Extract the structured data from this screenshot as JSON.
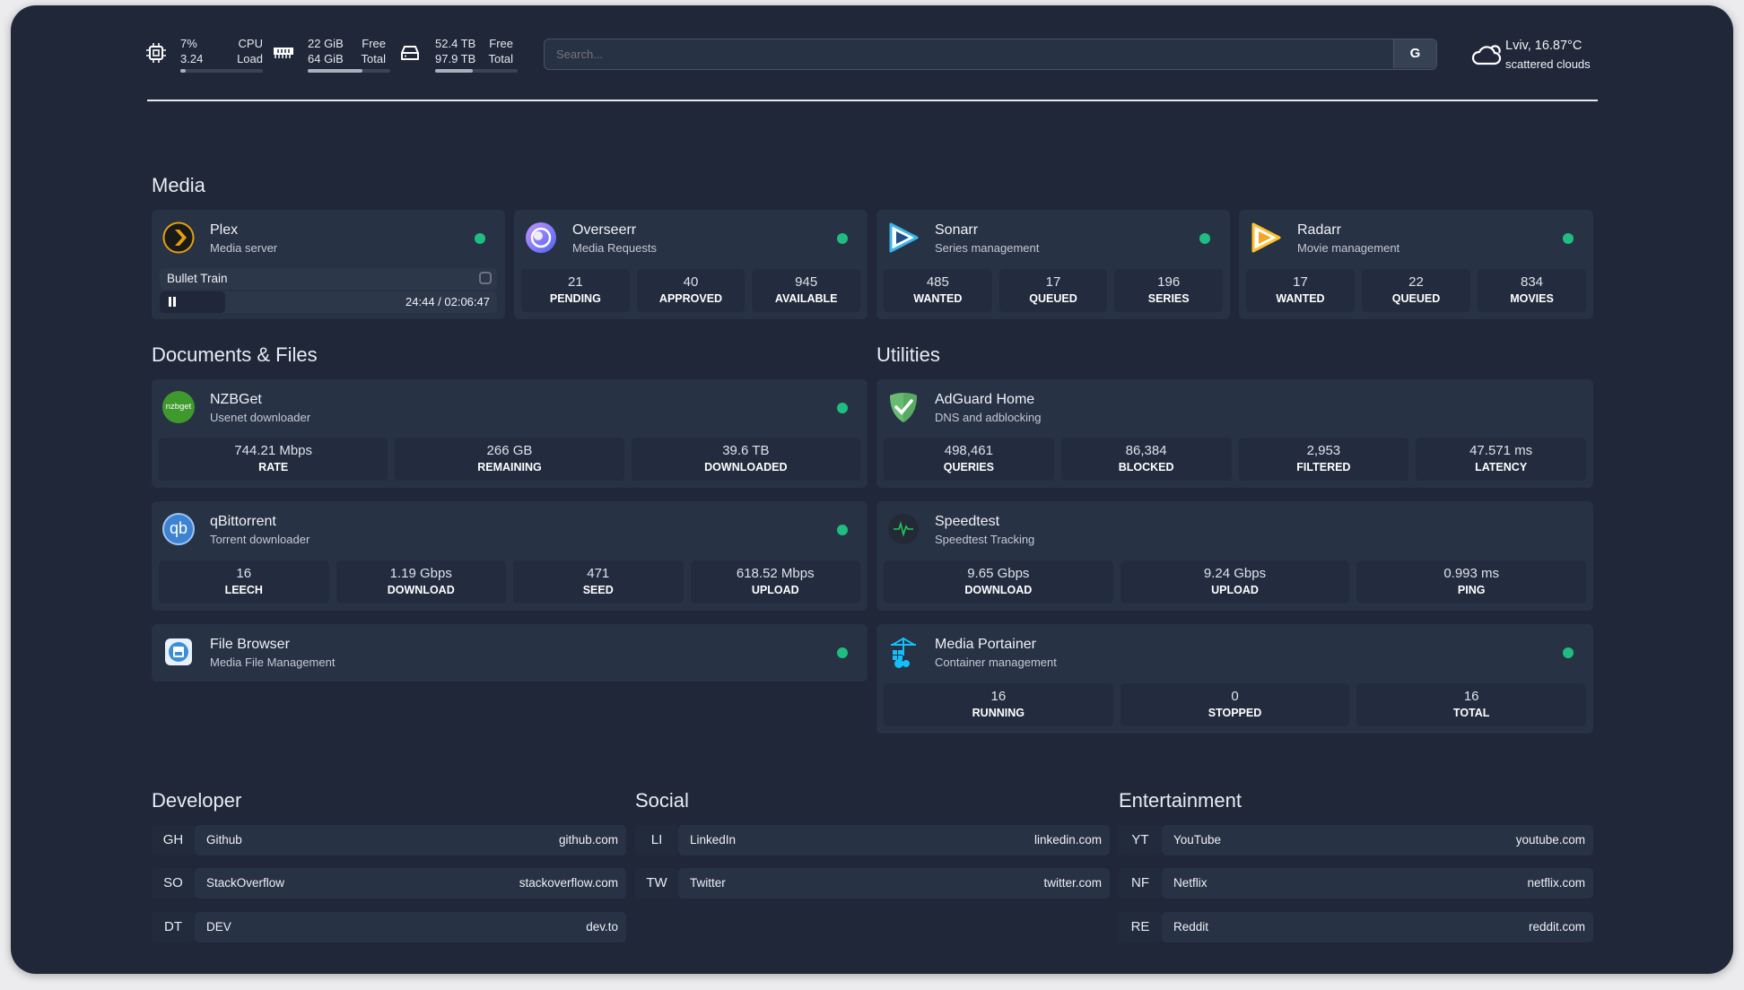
{
  "topbar": {
    "cpu": {
      "icon": "cpu-icon",
      "usage": "7%",
      "load": "3.24",
      "label1": "CPU",
      "label2": "Load",
      "fill": 0.07
    },
    "memory": {
      "icon": "memory-icon",
      "free": "22 GiB",
      "total": "64 GiB",
      "label1": "Free",
      "label2": "Total",
      "fill": 0.66
    },
    "disk": {
      "icon": "disk-icon",
      "free": "52.4 TB",
      "total": "97.9 TB",
      "label1": "Free",
      "label2": "Total",
      "fill": 0.46
    },
    "search": {
      "placeholder": "Search...",
      "button": "G"
    },
    "weather": {
      "icon": "cloud-icon",
      "location": "Lviv, 16.87°C",
      "condition": "scattered clouds"
    }
  },
  "sections": {
    "media": "Media",
    "docs": "Documents & Files",
    "utilities": "Utilities",
    "developer": "Developer",
    "social": "Social",
    "entertainment": "Entertainment"
  },
  "status_color": "#1fbd7f",
  "media": {
    "plex": {
      "title": "Plex",
      "sub": "Media server",
      "playing": "Bullet Train",
      "time": "24:44 / 02:06:47",
      "progress": 0.195
    },
    "overseerr": {
      "title": "Overseerr",
      "sub": "Media Requests",
      "stats": [
        {
          "v": "21",
          "l": "PENDING"
        },
        {
          "v": "40",
          "l": "APPROVED"
        },
        {
          "v": "945",
          "l": "AVAILABLE"
        }
      ]
    },
    "sonarr": {
      "title": "Sonarr",
      "sub": "Series management",
      "stats": [
        {
          "v": "485",
          "l": "WANTED"
        },
        {
          "v": "17",
          "l": "QUEUED"
        },
        {
          "v": "196",
          "l": "SERIES"
        }
      ]
    },
    "radarr": {
      "title": "Radarr",
      "sub": "Movie management",
      "stats": [
        {
          "v": "17",
          "l": "WANTED"
        },
        {
          "v": "22",
          "l": "QUEUED"
        },
        {
          "v": "834",
          "l": "MOVIES"
        }
      ]
    }
  },
  "docs": {
    "nzbget": {
      "title": "NZBGet",
      "sub": "Usenet downloader",
      "logo": "nzbget",
      "stats": [
        {
          "v": "744.21 Mbps",
          "l": "RATE"
        },
        {
          "v": "266 GB",
          "l": "REMAINING"
        },
        {
          "v": "39.6 TB",
          "l": "DOWNLOADED"
        }
      ]
    },
    "qbit": {
      "title": "qBittorrent",
      "sub": "Torrent downloader",
      "logo": "qb",
      "stats": [
        {
          "v": "16",
          "l": "LEECH"
        },
        {
          "v": "1.19 Gbps",
          "l": "DOWNLOAD"
        },
        {
          "v": "471",
          "l": "SEED"
        },
        {
          "v": "618.52 Mbps",
          "l": "UPLOAD"
        }
      ]
    },
    "filebrowser": {
      "title": "File Browser",
      "sub": "Media File Management"
    }
  },
  "utilities": {
    "adguard": {
      "title": "AdGuard Home",
      "sub": "DNS and adblocking",
      "stats": [
        {
          "v": "498,461",
          "l": "QUERIES"
        },
        {
          "v": "86,384",
          "l": "BLOCKED"
        },
        {
          "v": "2,953",
          "l": "FILTERED"
        },
        {
          "v": "47.571 ms",
          "l": "LATENCY"
        }
      ]
    },
    "speedtest": {
      "title": "Speedtest",
      "sub": "Speedtest Tracking",
      "stats": [
        {
          "v": "9.65 Gbps",
          "l": "DOWNLOAD"
        },
        {
          "v": "9.24 Gbps",
          "l": "UPLOAD"
        },
        {
          "v": "0.993 ms",
          "l": "PING"
        }
      ]
    },
    "portainer": {
      "title": "Media Portainer",
      "sub": "Container management",
      "stats": [
        {
          "v": "16",
          "l": "RUNNING"
        },
        {
          "v": "0",
          "l": "STOPPED"
        },
        {
          "v": "16",
          "l": "TOTAL"
        }
      ]
    }
  },
  "links": {
    "developer": [
      {
        "abbr": "GH",
        "name": "Github",
        "url": "github.com"
      },
      {
        "abbr": "SO",
        "name": "StackOverflow",
        "url": "stackoverflow.com"
      },
      {
        "abbr": "DT",
        "name": "DEV",
        "url": "dev.to"
      }
    ],
    "social": [
      {
        "abbr": "LI",
        "name": "LinkedIn",
        "url": "linkedin.com"
      },
      {
        "abbr": "TW",
        "name": "Twitter",
        "url": "twitter.com"
      }
    ],
    "entertainment": [
      {
        "abbr": "YT",
        "name": "YouTube",
        "url": "youtube.com"
      },
      {
        "abbr": "NF",
        "name": "Netflix",
        "url": "netflix.com"
      },
      {
        "abbr": "RE",
        "name": "Reddit",
        "url": "reddit.com"
      }
    ]
  }
}
